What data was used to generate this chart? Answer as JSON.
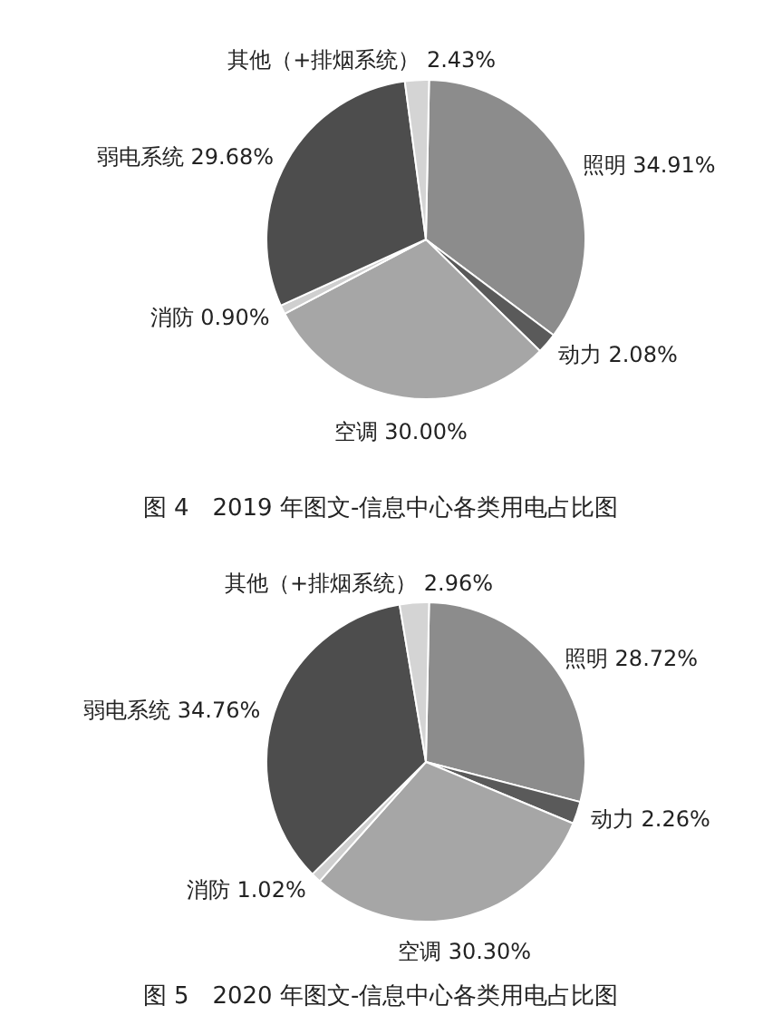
{
  "chart_data": [
    {
      "type": "pie",
      "title": "图 4　2019 年图文-信息中心各类用电占比图",
      "categories": [
        "照明",
        "动力",
        "空调",
        "消防",
        "弱电系统",
        "其他（+排烟系统）"
      ],
      "values": [
        34.91,
        2.08,
        30.0,
        0.9,
        29.68,
        2.43
      ],
      "value_labels": [
        "34.91%",
        "2.08%",
        "30.00%",
        "0.90%",
        "29.68%",
        "2.43%"
      ],
      "colors": [
        "#8c8c8c",
        "#5a5a5a",
        "#a6a6a6",
        "#cfcfcf",
        "#4d4d4d",
        "#d4d4d4"
      ]
    },
    {
      "type": "pie",
      "title": "图 5　2020 年图文-信息中心各类用电占比图",
      "categories": [
        "照明",
        "动力",
        "空调",
        "消防",
        "弱电系统",
        "其他（+排烟系统）"
      ],
      "values": [
        28.72,
        2.26,
        30.3,
        1.02,
        34.76,
        2.96
      ],
      "value_labels": [
        "28.72%",
        "2.26%",
        "30.30%",
        "1.02%",
        "34.76%",
        "2.96%"
      ],
      "colors": [
        "#8c8c8c",
        "#5a5a5a",
        "#a6a6a6",
        "#cfcfcf",
        "#4d4d4d",
        "#d4d4d4"
      ]
    }
  ]
}
